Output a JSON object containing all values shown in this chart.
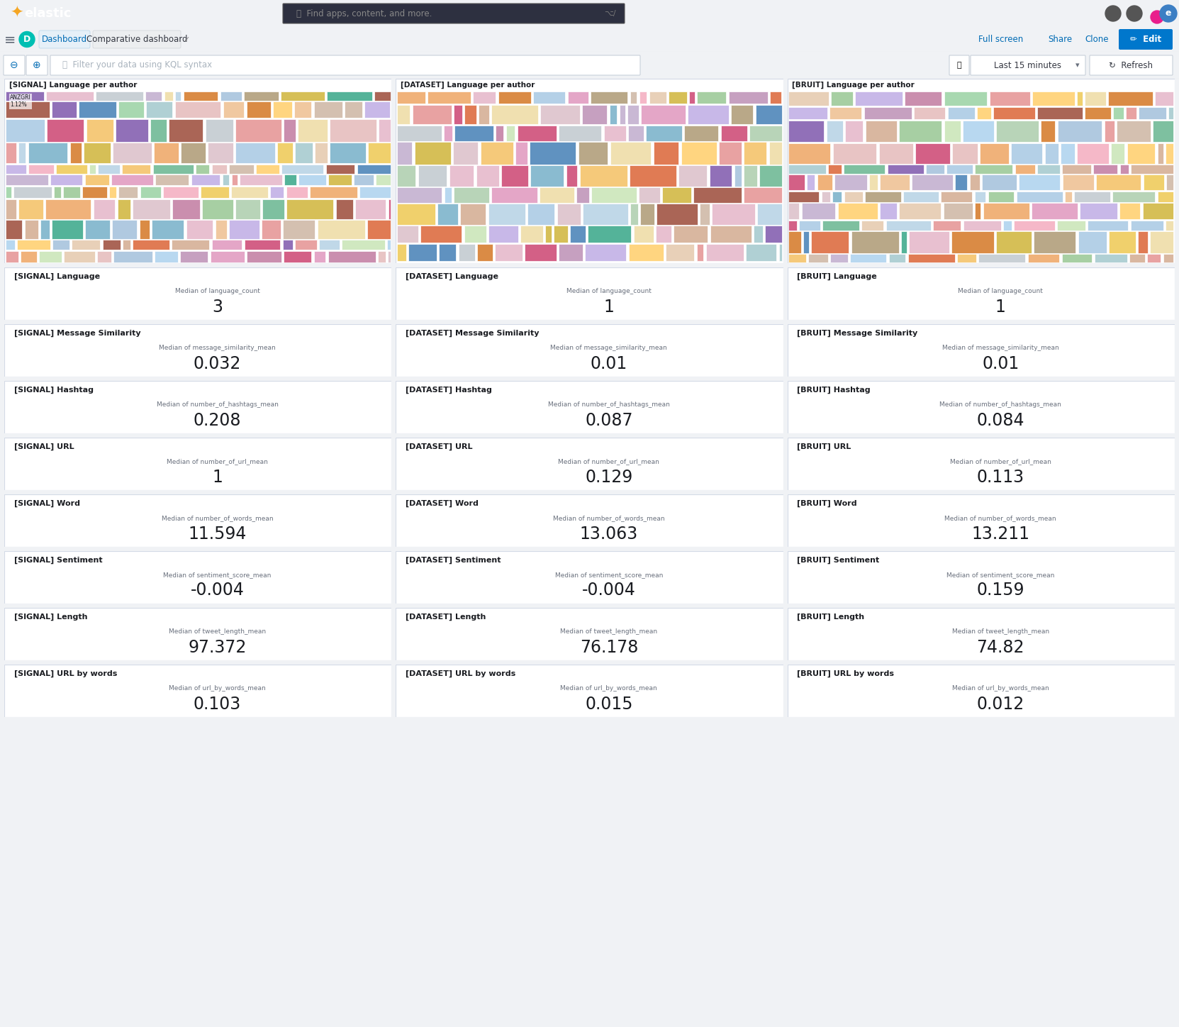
{
  "bg_color": "#f0f2f5",
  "header_bg": "#1a1c21",
  "card_bg": "#ffffff",
  "card_border": "#d3dae6",
  "text_dark": "#1a1c21",
  "text_medium": "#69707d",
  "text_small": "#98a2b3",
  "treemap_colors": [
    "#54b399",
    "#6092c0",
    "#d36086",
    "#9170b8",
    "#ca8eae",
    "#d6bf57",
    "#b9a888",
    "#da8b45",
    "#e07b54",
    "#aa6556",
    "#e4a6c7",
    "#b0c9e0",
    "#f0d06c",
    "#a7cfa3",
    "#c9d0d5",
    "#e8a2a2",
    "#7ec0a0",
    "#b4d0e7",
    "#f5c97a",
    "#c6a0c0",
    "#d9b7a0",
    "#8abbd0",
    "#f0b27a",
    "#e8c4c4",
    "#b8d4b8",
    "#c9b8d4",
    "#f0e0b0",
    "#d4c0b0",
    "#b0d0d4",
    "#e0c8d0",
    "#f5b8c8",
    "#a8d8b0",
    "#ffd580",
    "#c8b8e8",
    "#b8d8f0",
    "#f0c8a0",
    "#d0e8c0",
    "#e8d0b8",
    "#c0d8e8",
    "#e8c0d0"
  ],
  "treemap_titles": [
    "[SIGNAL] Language per author",
    "[DATASET] Language per author",
    "[BRUIT] Language per author"
  ],
  "metric_rows": [
    {
      "title": "Language",
      "label": "Median of language_count",
      "values": [
        "3",
        "1",
        "1"
      ],
      "datasets": [
        "[SIGNAL]",
        "[DATASET]",
        "[BRUIT]"
      ]
    },
    {
      "title": "Message Similarity",
      "label": "Median of message_similarity_mean",
      "values": [
        "0.032",
        "0.01",
        "0.01"
      ],
      "datasets": [
        "[SIGNAL]",
        "[DATASET]",
        "[BRUIT]"
      ]
    },
    {
      "title": "Hashtag",
      "label": "Median of number_of_hashtags_mean",
      "values": [
        "0.208",
        "0.087",
        "0.084"
      ],
      "datasets": [
        "[SIGNAL]",
        "[DATASET]",
        "[BRUIT]"
      ]
    },
    {
      "title": "URL",
      "label": "Median of number_of_url_mean",
      "values": [
        "1",
        "0.129",
        "0.113"
      ],
      "datasets": [
        "[SIGNAL]",
        "[DATASET]",
        "[BRUIT]"
      ]
    },
    {
      "title": "Word",
      "label": "Median of number_of_words_mean",
      "values": [
        "11.594",
        "13.063",
        "13.211"
      ],
      "datasets": [
        "[SIGNAL]",
        "[DATASET]",
        "[BRUIT]"
      ]
    },
    {
      "title": "Sentiment",
      "label": "Median of sentiment_score_mean",
      "values": [
        "-0.004",
        "-0.004",
        "0.159"
      ],
      "datasets": [
        "[SIGNAL]",
        "[DATASET]",
        "[BRUIT]"
      ]
    },
    {
      "title": "Length",
      "label": "Median of tweet_length_mean",
      "values": [
        "97.372",
        "76.178",
        "74.82"
      ],
      "datasets": [
        "[SIGNAL]",
        "[DATASET]",
        "[BRUIT]"
      ]
    },
    {
      "title": "URL by words",
      "label": "Median of url_by_words_mean",
      "values": [
        "0.103",
        "0.015",
        "0.012"
      ],
      "datasets": [
        "[SIGNAL]",
        "[DATASET]",
        "[BRUIT]"
      ]
    }
  ]
}
